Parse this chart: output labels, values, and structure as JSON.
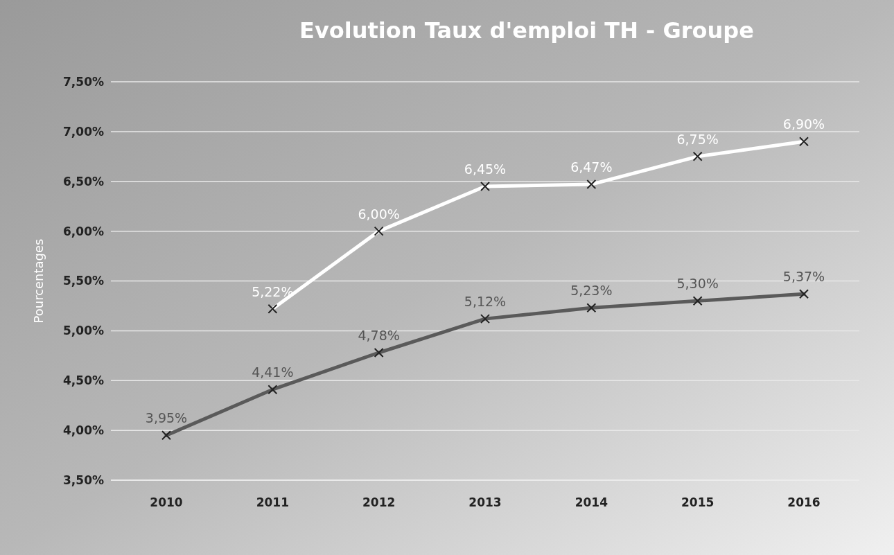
{
  "chart_data": {
    "type": "line",
    "title": "Evolution Taux d'emploi TH - Groupe",
    "ylabel": "Pourcentages",
    "categories": [
      "2010",
      "2011",
      "2012",
      "2013",
      "2014",
      "2015",
      "2016"
    ],
    "series": [
      {
        "color": "#ffffff",
        "values": [
          null,
          5.22,
          6.0,
          6.45,
          6.47,
          6.75,
          6.9
        ],
        "value_labels": [
          null,
          "5,22%",
          "6,00%",
          "6,45%",
          "6,47%",
          "6,75%",
          "6,90%"
        ]
      },
      {
        "color": "#5a5a5a",
        "values": [
          3.95,
          4.41,
          4.78,
          5.12,
          5.23,
          5.3,
          5.37
        ],
        "value_labels": [
          "3,95%",
          "4,41%",
          "4,78%",
          "5,12%",
          "5,23%",
          "5,30%",
          "5,37%"
        ]
      }
    ],
    "ylim": [
      3.5,
      7.5
    ],
    "yticks": [
      {
        "value": 3.5,
        "label": "3,50%"
      },
      {
        "value": 4,
        "label": "4,00%"
      },
      {
        "value": 4.5,
        "label": "4,50%"
      },
      {
        "value": 5,
        "label": "5,00%"
      },
      {
        "value": 5.5,
        "label": "5,50%"
      },
      {
        "value": 6,
        "label": "6,00%"
      },
      {
        "value": 6.5,
        "label": "6,50%"
      },
      {
        "value": 7,
        "label": "7,00%"
      },
      {
        "value": 7.5,
        "label": "7,50%"
      }
    ],
    "grid": "y",
    "marker": "cross",
    "line_style": "solid"
  }
}
